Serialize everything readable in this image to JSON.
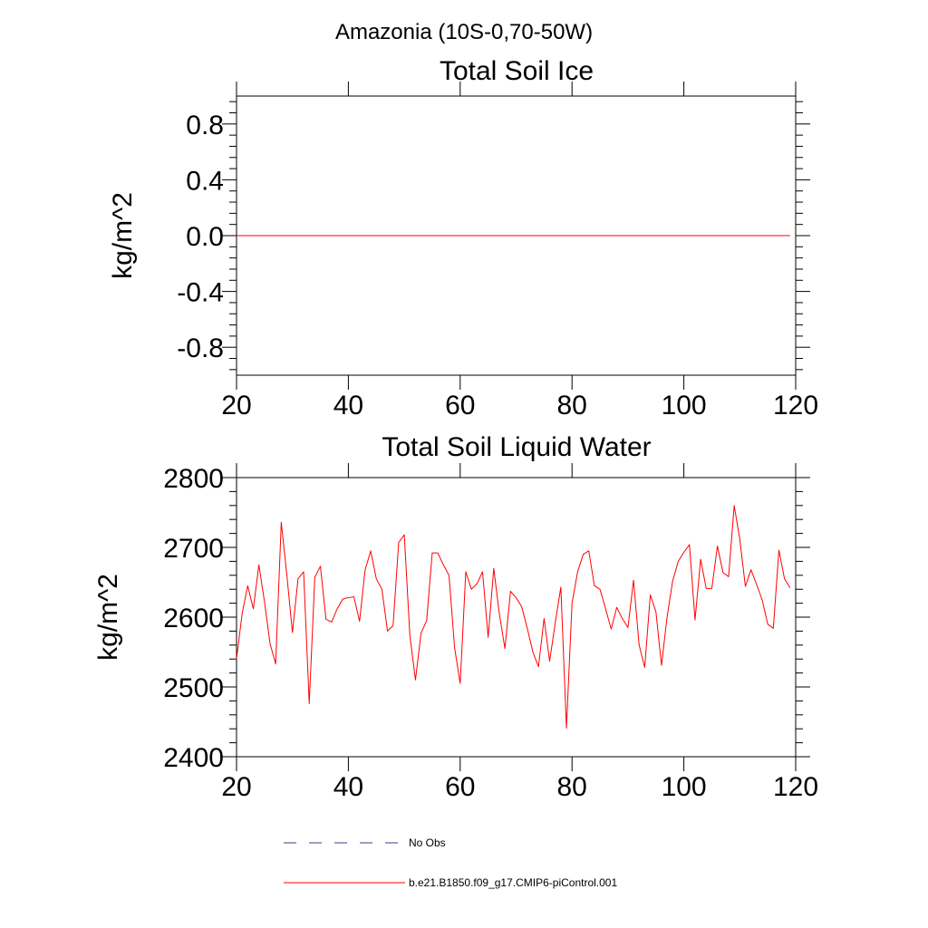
{
  "figure": {
    "main_title": "Amazonia (10S-0,70-50W)"
  },
  "chart_data": [
    {
      "type": "line",
      "title": "Total Soil Ice",
      "xlabel": "",
      "ylabel": "kg/m^2",
      "xlim": [
        20,
        120
      ],
      "ylim": [
        -1.0,
        1.0
      ],
      "xticks": [
        20,
        40,
        60,
        80,
        100,
        120
      ],
      "xtick_labels": [
        "20",
        "40",
        "60",
        "80",
        "100",
        "120"
      ],
      "yticks": [
        -0.8,
        -0.4,
        0.0,
        0.4,
        0.8
      ],
      "ytick_labels": [
        "-0.8",
        "-0.4",
        "0.0",
        "0.4",
        "0.8"
      ],
      "grid": false,
      "series": [
        {
          "name": "b.e21.B1850.f09_g17.CMIP6-piControl.001",
          "color": "#ff0000",
          "x": [
            20,
            119
          ],
          "values": [
            0.0,
            0.0
          ]
        }
      ]
    },
    {
      "type": "line",
      "title": "Total Soil Liquid Water",
      "xlabel": "",
      "ylabel": "kg/m^2",
      "xlim": [
        20,
        120
      ],
      "ylim": [
        2400,
        2800
      ],
      "xticks": [
        20,
        40,
        60,
        80,
        100,
        120
      ],
      "xtick_labels": [
        "20",
        "40",
        "60",
        "80",
        "100",
        "120"
      ],
      "yticks": [
        2400,
        2500,
        2600,
        2700,
        2800
      ],
      "ytick_labels": [
        "2400",
        "2500",
        "2600",
        "2700",
        "2800"
      ],
      "grid": false,
      "series": [
        {
          "name": "b.e21.B1850.f09_g17.CMIP6-piControl.001",
          "color": "#ff0000",
          "x_start": 20,
          "x_step": 1,
          "values": [
            2540,
            2605,
            2645,
            2612,
            2675,
            2622,
            2562,
            2533,
            2736,
            2660,
            2578,
            2655,
            2665,
            2476,
            2657,
            2673,
            2597,
            2593,
            2612,
            2626,
            2628,
            2629,
            2594,
            2668,
            2695,
            2655,
            2640,
            2580,
            2588,
            2707,
            2718,
            2574,
            2510,
            2577,
            2595,
            2692,
            2692,
            2675,
            2660,
            2556,
            2505,
            2665,
            2640,
            2648,
            2665,
            2571,
            2670,
            2605,
            2555,
            2637,
            2628,
            2615,
            2584,
            2550,
            2529,
            2598,
            2537,
            2592,
            2643,
            2441,
            2620,
            2665,
            2690,
            2695,
            2645,
            2640,
            2612,
            2583,
            2614,
            2598,
            2585,
            2653,
            2560,
            2528,
            2632,
            2608,
            2531,
            2600,
            2652,
            2680,
            2693,
            2704,
            2596,
            2683,
            2641,
            2641,
            2702,
            2664,
            2658,
            2760,
            2712,
            2644,
            2668,
            2647,
            2625,
            2590,
            2584,
            2696,
            2655,
            2642
          ]
        }
      ]
    }
  ],
  "legend": {
    "placement": "bottom-center",
    "entries": [
      {
        "label": "No Obs",
        "color": "#3c3c8c",
        "style": "dashed"
      },
      {
        "label": "b.e21.B1850.f09_g17.CMIP6-piControl.001",
        "color": "#ff0000",
        "style": "solid"
      }
    ]
  }
}
